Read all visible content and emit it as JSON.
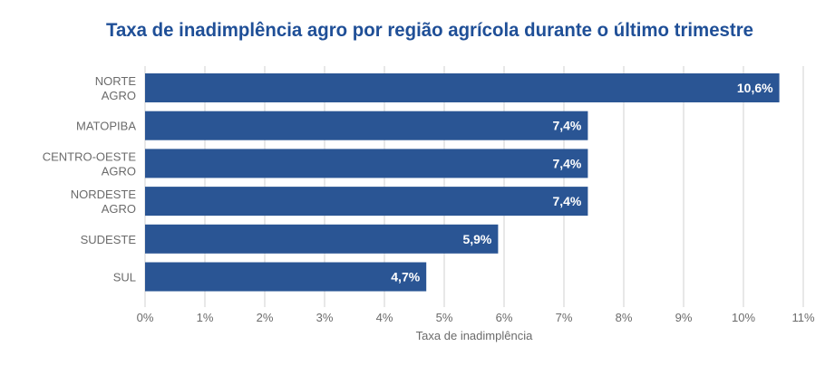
{
  "chart_data": {
    "type": "bar",
    "orientation": "horizontal",
    "title": "Taxa de inadimplência agro por região agrícola durante o último trimestre",
    "xlabel": "Taxa de inadimplência",
    "ylabel": "",
    "categories": [
      [
        "NORTE",
        "AGRO"
      ],
      [
        "MATOPIBA"
      ],
      [
        "CENTRO-OESTE",
        "AGRO"
      ],
      [
        "NORDESTE",
        "AGRO"
      ],
      [
        "SUDESTE"
      ],
      [
        "SUL"
      ]
    ],
    "values": [
      10.6,
      7.4,
      7.4,
      7.4,
      5.9,
      4.7
    ],
    "data_labels": [
      "10,6%",
      "7,4%",
      "7,4%",
      "7,4%",
      "5,9%",
      "4,7%"
    ],
    "xlim": [
      0,
      11
    ],
    "xticks": [
      "0%",
      "1%",
      "2%",
      "3%",
      "4%",
      "5%",
      "6%",
      "7%",
      "8%",
      "9%",
      "10%",
      "11%"
    ],
    "grid": "vertical",
    "legend": "none",
    "colors": {
      "bar": "#2a5594",
      "title": "#1f4f97",
      "grid": "#d0d0d0"
    }
  }
}
